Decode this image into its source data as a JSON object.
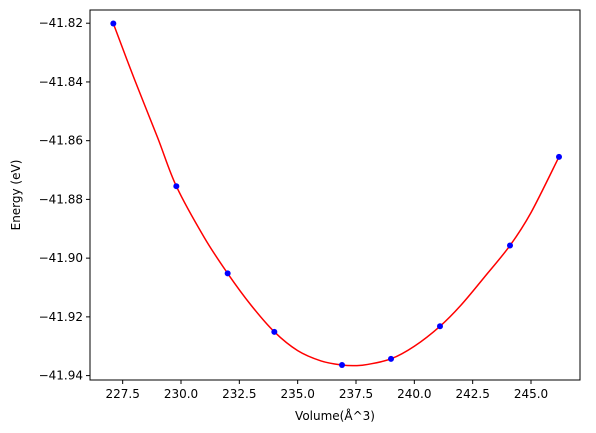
{
  "chart_data": {
    "type": "scatter",
    "xlabel": "Volume(Å^3)",
    "ylabel": "Energy (eV)",
    "xlim": [
      226.1,
      247.1
    ],
    "ylim": [
      -41.9415,
      -41.8155
    ],
    "xticks": [
      227.5,
      230.0,
      232.5,
      235.0,
      237.5,
      240.0,
      242.5,
      245.0
    ],
    "xtick_labels": [
      "227.5",
      "230.0",
      "232.5",
      "235.0",
      "237.5",
      "240.0",
      "242.5",
      "245.0"
    ],
    "yticks": [
      -41.82,
      -41.84,
      -41.86,
      -41.88,
      -41.9,
      -41.92,
      -41.94
    ],
    "ytick_labels": [
      "−41.82",
      "−41.84",
      "−41.86",
      "−41.88",
      "−41.90",
      "−41.92",
      "−41.94"
    ],
    "grid": false,
    "series": [
      {
        "kind": "points",
        "color": "#0000ff",
        "x": [
          227.1,
          229.8,
          232.0,
          234.0,
          236.9,
          239.0,
          241.1,
          244.1,
          246.2
        ],
        "y": [
          -41.8201,
          -41.8755,
          -41.9052,
          -41.9251,
          -41.9364,
          -41.9343,
          -41.9232,
          -41.8957,
          -41.8655
        ]
      },
      {
        "kind": "fit-curve",
        "color": "#ff0000",
        "x": [
          227.1,
          228.0,
          229.0,
          229.8,
          231.0,
          232.0,
          233.0,
          234.0,
          235.0,
          236.0,
          236.9,
          237.5,
          238.0,
          239.0,
          240.0,
          241.1,
          242.0,
          243.0,
          244.1,
          245.0,
          246.2
        ],
        "y": [
          -41.8201,
          -41.839,
          -41.859,
          -41.8755,
          -41.893,
          -41.9052,
          -41.916,
          -41.9251,
          -41.9315,
          -41.935,
          -41.9364,
          -41.9366,
          -41.9362,
          -41.9343,
          -41.93,
          -41.9232,
          -41.916,
          -41.9065,
          -41.8957,
          -41.8845,
          -41.8655
        ]
      }
    ]
  }
}
